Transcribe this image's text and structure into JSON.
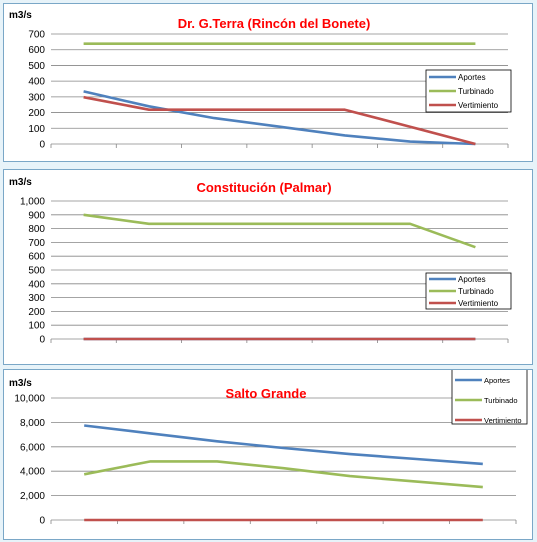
{
  "chart_data": [
    {
      "type": "line",
      "title": "Dr. G.Terra (Rincón del Bonete)",
      "ylabel": "m3/s",
      "ylim": [
        0,
        700
      ],
      "yticks": [
        "0",
        "100",
        "200",
        "300",
        "400",
        "500",
        "600",
        "700"
      ],
      "grid": true,
      "legend": "right",
      "x": [
        1,
        2,
        3,
        4,
        5,
        6,
        7
      ],
      "series": [
        {
          "name": "Aportes",
          "color": "#4f81bd",
          "values": [
            335,
            240,
            165,
            110,
            55,
            15,
            0
          ]
        },
        {
          "name": "Turbinado",
          "color": "#9bbb59",
          "values": [
            638,
            638,
            638,
            638,
            638,
            638,
            638
          ]
        },
        {
          "name": "Vertimiento",
          "color": "#c0504d",
          "values": [
            298,
            218,
            218,
            218,
            218,
            110,
            0
          ]
        }
      ]
    },
    {
      "type": "line",
      "title": "Constitución (Palmar)",
      "ylabel": "m3/s",
      "ylim": [
        0,
        1000
      ],
      "yticks": [
        "0",
        "100",
        "200",
        "300",
        "400",
        "500",
        "600",
        "700",
        "800",
        "900",
        "1,000"
      ],
      "grid": true,
      "legend": "right",
      "x": [
        1,
        2,
        3,
        4,
        5,
        6,
        7
      ],
      "series": [
        {
          "name": "Aportes",
          "color": "#4f81bd",
          "values": [
            0,
            0,
            0,
            0,
            0,
            0,
            0
          ]
        },
        {
          "name": "Turbinado",
          "color": "#9bbb59",
          "values": [
            900,
            835,
            835,
            835,
            835,
            835,
            665
          ]
        },
        {
          "name": "Vertimiento",
          "color": "#c0504d",
          "values": [
            0,
            0,
            0,
            0,
            0,
            0,
            0
          ]
        }
      ]
    },
    {
      "type": "line",
      "title": "Salto Grande",
      "ylabel": "m3/s",
      "ylim": [
        0,
        10000
      ],
      "yticks": [
        "0",
        "2,000",
        "4,000",
        "6,000",
        "8,000",
        "10,000"
      ],
      "grid": true,
      "legend": "top-right",
      "x": [
        1,
        2,
        3,
        4,
        5,
        6,
        7
      ],
      "series": [
        {
          "name": "Aportes",
          "color": "#4f81bd",
          "values": [
            7750,
            7100,
            6450,
            5900,
            5400,
            5000,
            4600
          ]
        },
        {
          "name": "Turbinado",
          "color": "#9bbb59",
          "values": [
            3750,
            4800,
            4800,
            4250,
            3600,
            3150,
            2700
          ]
        },
        {
          "name": "Vertimiento",
          "color": "#c0504d",
          "values": [
            0,
            0,
            0,
            0,
            0,
            0,
            0
          ]
        }
      ]
    }
  ]
}
